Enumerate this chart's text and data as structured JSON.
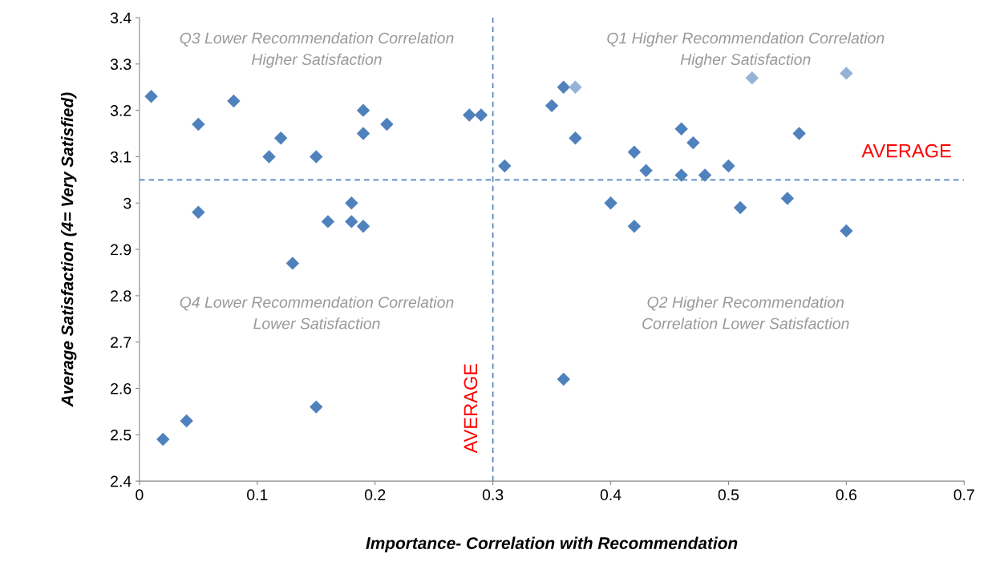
{
  "chart_data": {
    "type": "scatter",
    "xlabel": "Importance- Correlation with Recommendation",
    "ylabel": "Average Satisfaction (4= Very Satisfied)",
    "series": [
      {
        "color": "#4f81bd",
        "x": [
          0.01,
          0.05,
          0.08,
          0.12,
          0.11,
          0.15,
          0.19,
          0.19,
          0.21,
          0.28,
          0.29,
          0.05,
          0.18,
          0.16,
          0.18,
          0.19,
          0.13,
          0.31,
          0.35,
          0.36,
          0.37,
          0.42,
          0.43,
          0.46,
          0.47,
          0.46,
          0.48,
          0.5,
          0.56,
          0.4,
          0.42,
          0.51,
          0.55,
          0.6,
          0.36,
          0.02,
          0.04,
          0.15
        ],
        "values": [
          3.23,
          3.17,
          3.22,
          3.14,
          3.1,
          3.1,
          3.2,
          3.15,
          3.17,
          3.19,
          3.19,
          2.98,
          3.0,
          2.96,
          2.96,
          2.95,
          2.87,
          3.08,
          3.21,
          3.25,
          3.14,
          3.11,
          3.07,
          3.16,
          3.13,
          3.06,
          3.06,
          3.08,
          3.15,
          3.0,
          2.95,
          2.99,
          3.01,
          2.94,
          2.62,
          2.49,
          2.53,
          2.56
        ]
      },
      {
        "color": "#95b3d7",
        "x": [
          0.37,
          0.52,
          0.6
        ],
        "values": [
          3.25,
          3.27,
          3.28
        ]
      }
    ],
    "marker": "diamond",
    "xlim": [
      0,
      0.7
    ],
    "ylim": [
      2.4,
      3.4
    ],
    "xticks": [
      0,
      0.1,
      0.2,
      0.3,
      0.4,
      0.5,
      0.6,
      0.7
    ],
    "yticks": [
      2.4,
      2.5,
      2.6,
      2.7,
      2.8,
      2.9,
      3,
      3.1,
      3.2,
      3.3,
      3.4
    ],
    "grid": false,
    "legend": false,
    "ref_lines": [
      {
        "axis": "y",
        "value": 3.05,
        "label": "AVERAGE",
        "color": "#4f81bd",
        "line_style": "dashed"
      },
      {
        "axis": "x",
        "value": 0.3,
        "label": "AVERAGE",
        "color": "#4f81bd",
        "line_style": "dashed"
      }
    ],
    "annotations": [
      "Q3 Lower Recommendation Correlation\nHigher Satisfaction",
      "Q1 Higher Recommendation Correlation\nHigher Satisfaction",
      "Q4 Lower Recommendation Correlation\nLower Satisfaction",
      "Q2 Higher Recommendation\nCorrelation Lower Satisfaction"
    ]
  }
}
